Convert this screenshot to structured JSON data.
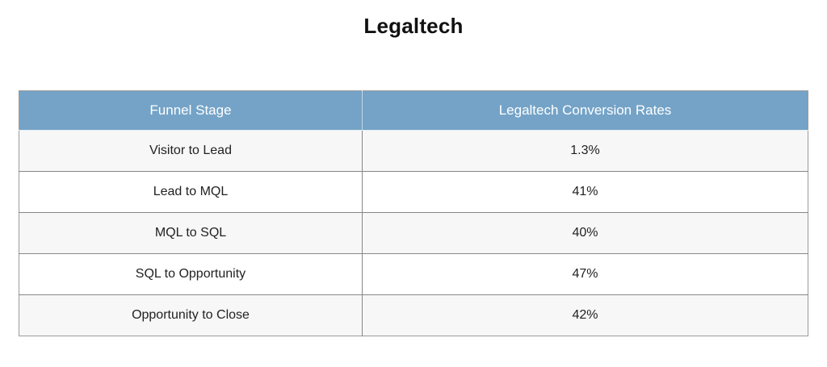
{
  "page": {
    "title": "Legaltech"
  },
  "colors": {
    "header_bg": "#74a3c7",
    "header_text": "#ffffff",
    "row_alt_bg": "#f7f7f8",
    "row_bg": "#ffffff",
    "border": "#878787",
    "body_text": "#222222"
  },
  "chart_data": {
    "type": "table",
    "title": "Legaltech",
    "columns": [
      "Funnel Stage",
      "Legaltech Conversion Rates"
    ],
    "rows": [
      [
        "Visitor to Lead",
        "1.3%"
      ],
      [
        "Lead to MQL",
        "41%"
      ],
      [
        "MQL to SQL",
        "40%"
      ],
      [
        "SQL to Opportunity",
        "47%"
      ],
      [
        "Opportunity to Close",
        "42%"
      ]
    ],
    "values_numeric_percent": [
      1.3,
      41,
      40,
      47,
      42
    ]
  }
}
